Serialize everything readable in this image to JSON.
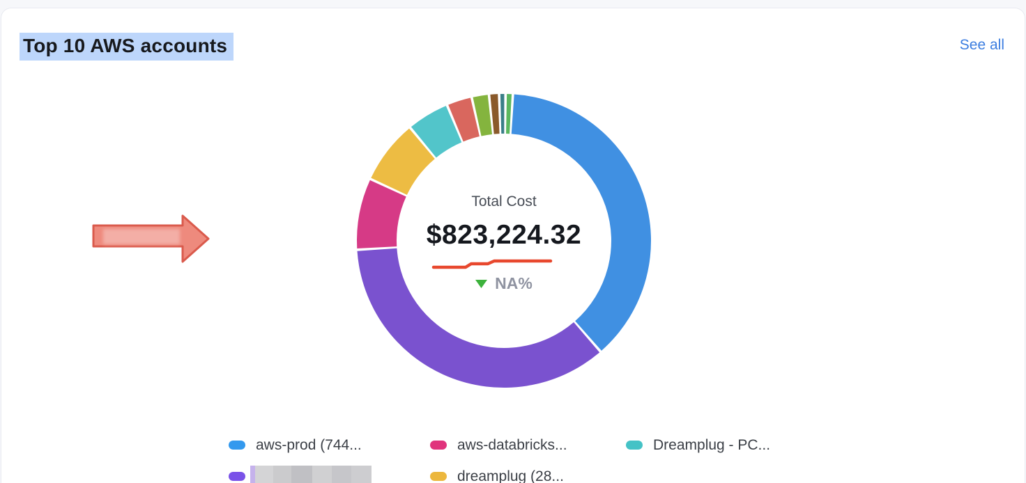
{
  "page": {
    "background_color": "#f6f7fa",
    "card_color": "#ffffff"
  },
  "header": {
    "title": "Top 10 AWS accounts",
    "title_highlight_color": "#bdd6fb",
    "see_all_label": "See all",
    "see_all_color": "#3b7de0"
  },
  "chart_data": {
    "type": "pie",
    "subtype": "donut",
    "title": "Top 10 AWS accounts",
    "legend_position": "bottom",
    "start_angle_deg": 4,
    "gap_deg": 1.0,
    "center": {
      "label": "Total Cost",
      "value": "$823,224.32",
      "delta_label": "NA%",
      "delta_direction": "down",
      "delta_arrow_color": "#3db23c",
      "delta_text_color": "#8f93a1",
      "underline_color": "#e8482e"
    },
    "segments": [
      {
        "label": "aws-prod (744...",
        "percent": 37.7,
        "color": "#4090e2"
      },
      {
        "label": "",
        "redacted": true,
        "percent": 35.5,
        "color": "#7a52cf"
      },
      {
        "label": "aws-databricks...",
        "percent": 7.9,
        "color": "#d63a86"
      },
      {
        "label": "dreamplug (28...",
        "percent": 7.1,
        "color": "#edbc43"
      },
      {
        "label": "Dreamplug - PC...",
        "percent": 4.7,
        "color": "#52c5ca"
      },
      {
        "label": "",
        "percent": 2.8,
        "color": "#d9675e"
      },
      {
        "label": "",
        "percent": 1.9,
        "color": "#84b43e"
      },
      {
        "label": "",
        "percent": 1.1,
        "color": "#8a5a2b"
      },
      {
        "label": "",
        "percent": 0.7,
        "color": "#3a7f88"
      },
      {
        "label": "",
        "percent": 0.8,
        "color": "#5cb85f"
      }
    ]
  },
  "legend": {
    "items": [
      {
        "label": "aws-prod (744...",
        "color": "#3399ee",
        "redacted": false
      },
      {
        "label": "aws-databricks...",
        "color": "#e0337c",
        "redacted": false
      },
      {
        "label": "Dreamplug - PC...",
        "color": "#44c2c6",
        "redacted": false
      },
      {
        "label": "",
        "color": "#7a52e8",
        "redacted": true
      },
      {
        "label": "dreamplug (28...",
        "color": "#ecb73d",
        "redacted": false
      }
    ]
  },
  "annotations": {
    "arrow": {
      "fill_color": "#ee8a7d",
      "border_color": "#da5a4c",
      "redaction_color": "#f3aea6"
    }
  }
}
